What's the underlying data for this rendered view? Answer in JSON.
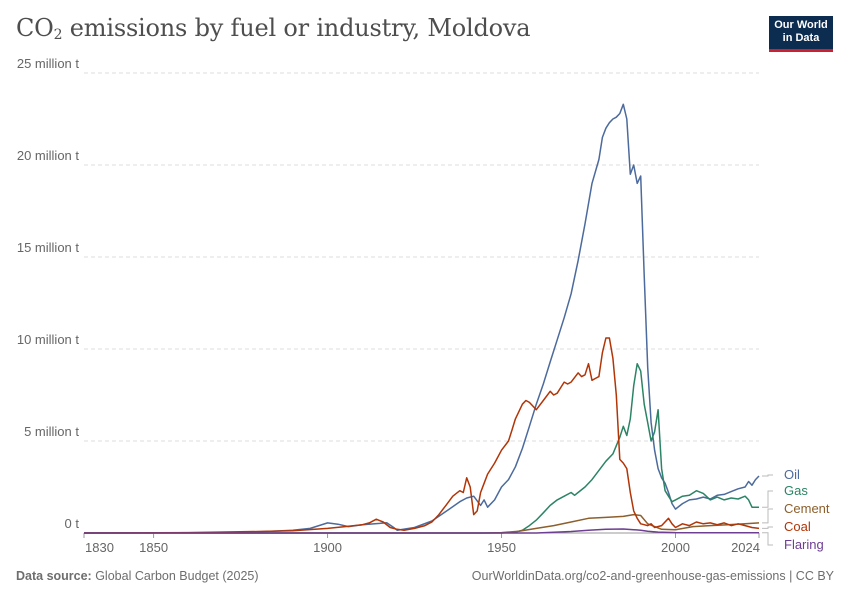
{
  "header": {
    "title_main": "CO",
    "title_sub": "2",
    "title_rest": " emissions by fuel or industry, Moldova",
    "logo_line1": "Our World",
    "logo_line2": "in Data"
  },
  "footer": {
    "source_label": "Data source:",
    "source_text": " Global Carbon Budget (2025)",
    "right_text": "OurWorldinData.org/co2-and-greenhouse-gas-emissions | CC BY"
  },
  "chart_data": {
    "type": "line",
    "title": "CO₂ emissions by fuel or industry, Moldova",
    "xlabel": "",
    "ylabel": "",
    "xlim": [
      1830,
      2024
    ],
    "ylim": [
      0,
      25000000
    ],
    "x_ticks": [
      1830,
      1850,
      1900,
      1950,
      2000,
      2024
    ],
    "y_ticks": [
      {
        "value": 0,
        "label": "0 t"
      },
      {
        "value": 5000000,
        "label": "5 million t"
      },
      {
        "value": 10000000,
        "label": "10 million t"
      },
      {
        "value": 15000000,
        "label": "15 million t"
      },
      {
        "value": 20000000,
        "label": "20 million t"
      },
      {
        "value": 25000000,
        "label": "25 million t"
      }
    ],
    "grid": true,
    "legend_position": "right",
    "series": [
      {
        "name": "Oil",
        "color": "#4c6a9c",
        "points": [
          [
            1830,
            0
          ],
          [
            1870,
            20000
          ],
          [
            1880,
            60000
          ],
          [
            1890,
            150000
          ],
          [
            1895,
            250000
          ],
          [
            1900,
            550000
          ],
          [
            1903,
            480000
          ],
          [
            1906,
            350000
          ],
          [
            1910,
            450000
          ],
          [
            1915,
            520000
          ],
          [
            1917,
            560000
          ],
          [
            1919,
            300000
          ],
          [
            1920,
            150000
          ],
          [
            1925,
            300000
          ],
          [
            1930,
            650000
          ],
          [
            1935,
            1300000
          ],
          [
            1938,
            1700000
          ],
          [
            1940,
            1900000
          ],
          [
            1942,
            2000000
          ],
          [
            1944,
            1500000
          ],
          [
            1945,
            1800000
          ],
          [
            1946,
            1400000
          ],
          [
            1948,
            1800000
          ],
          [
            1950,
            2500000
          ],
          [
            1952,
            2900000
          ],
          [
            1954,
            3600000
          ],
          [
            1956,
            4600000
          ],
          [
            1958,
            5800000
          ],
          [
            1960,
            7000000
          ],
          [
            1962,
            8100000
          ],
          [
            1964,
            9300000
          ],
          [
            1966,
            10500000
          ],
          [
            1968,
            11700000
          ],
          [
            1970,
            13000000
          ],
          [
            1972,
            14800000
          ],
          [
            1974,
            16800000
          ],
          [
            1976,
            19000000
          ],
          [
            1978,
            20300000
          ],
          [
            1979,
            21500000
          ],
          [
            1980,
            22000000
          ],
          [
            1981,
            22300000
          ],
          [
            1982,
            22500000
          ],
          [
            1983,
            22600000
          ],
          [
            1984,
            22800000
          ],
          [
            1985,
            23300000
          ],
          [
            1986,
            22500000
          ],
          [
            1987,
            19500000
          ],
          [
            1988,
            20000000
          ],
          [
            1989,
            19000000
          ],
          [
            1990,
            19400000
          ],
          [
            1991,
            14000000
          ],
          [
            1992,
            9000000
          ],
          [
            1993,
            6000000
          ],
          [
            1994,
            4500000
          ],
          [
            1995,
            3500000
          ],
          [
            1996,
            3000000
          ],
          [
            1997,
            2700000
          ],
          [
            1998,
            2200000
          ],
          [
            1999,
            1600000
          ],
          [
            2000,
            1300000
          ],
          [
            2002,
            1600000
          ],
          [
            2004,
            1800000
          ],
          [
            2006,
            1850000
          ],
          [
            2008,
            1950000
          ],
          [
            2010,
            1850000
          ],
          [
            2012,
            2050000
          ],
          [
            2014,
            2100000
          ],
          [
            2016,
            2250000
          ],
          [
            2018,
            2400000
          ],
          [
            2020,
            2500000
          ],
          [
            2021,
            2800000
          ],
          [
            2022,
            2600000
          ],
          [
            2023,
            2900000
          ],
          [
            2024,
            3100000
          ]
        ]
      },
      {
        "name": "Gas",
        "color": "#2c8465",
        "points": [
          [
            1830,
            0
          ],
          [
            1950,
            0
          ],
          [
            1954,
            50000
          ],
          [
            1956,
            150000
          ],
          [
            1958,
            400000
          ],
          [
            1960,
            700000
          ],
          [
            1962,
            1100000
          ],
          [
            1964,
            1500000
          ],
          [
            1966,
            1800000
          ],
          [
            1968,
            2000000
          ],
          [
            1970,
            2200000
          ],
          [
            1971,
            2050000
          ],
          [
            1972,
            2200000
          ],
          [
            1974,
            2500000
          ],
          [
            1976,
            2900000
          ],
          [
            1978,
            3400000
          ],
          [
            1980,
            3900000
          ],
          [
            1982,
            4300000
          ],
          [
            1984,
            5200000
          ],
          [
            1985,
            5800000
          ],
          [
            1986,
            5300000
          ],
          [
            1987,
            6200000
          ],
          [
            1988,
            8000000
          ],
          [
            1989,
            9200000
          ],
          [
            1990,
            8800000
          ],
          [
            1991,
            7000000
          ],
          [
            1992,
            6000000
          ],
          [
            1993,
            5000000
          ],
          [
            1994,
            5500000
          ],
          [
            1995,
            6700000
          ],
          [
            1996,
            3500000
          ],
          [
            1997,
            2300000
          ],
          [
            1998,
            2000000
          ],
          [
            1999,
            1700000
          ],
          [
            2000,
            1800000
          ],
          [
            2002,
            2000000
          ],
          [
            2004,
            2050000
          ],
          [
            2006,
            2300000
          ],
          [
            2008,
            2150000
          ],
          [
            2010,
            1800000
          ],
          [
            2012,
            1950000
          ],
          [
            2014,
            1800000
          ],
          [
            2016,
            1900000
          ],
          [
            2018,
            1850000
          ],
          [
            2020,
            2000000
          ],
          [
            2021,
            1800000
          ],
          [
            2022,
            1400000
          ],
          [
            2024,
            1400000
          ]
        ]
      },
      {
        "name": "Cement",
        "color": "#8c5f2c",
        "points": [
          [
            1830,
            0
          ],
          [
            1945,
            0
          ],
          [
            1950,
            20000
          ],
          [
            1955,
            100000
          ],
          [
            1960,
            250000
          ],
          [
            1965,
            400000
          ],
          [
            1970,
            600000
          ],
          [
            1975,
            800000
          ],
          [
            1980,
            850000
          ],
          [
            1985,
            900000
          ],
          [
            1988,
            1000000
          ],
          [
            1990,
            950000
          ],
          [
            1992,
            500000
          ],
          [
            1994,
            350000
          ],
          [
            1996,
            200000
          ],
          [
            2000,
            180000
          ],
          [
            2005,
            350000
          ],
          [
            2010,
            400000
          ],
          [
            2015,
            450000
          ],
          [
            2020,
            500000
          ],
          [
            2024,
            550000
          ]
        ]
      },
      {
        "name": "Coal",
        "color": "#b13507",
        "points": [
          [
            1830,
            0
          ],
          [
            1860,
            20000
          ],
          [
            1880,
            80000
          ],
          [
            1890,
            120000
          ],
          [
            1900,
            250000
          ],
          [
            1905,
            350000
          ],
          [
            1910,
            450000
          ],
          [
            1912,
            550000
          ],
          [
            1914,
            750000
          ],
          [
            1916,
            600000
          ],
          [
            1918,
            300000
          ],
          [
            1920,
            200000
          ],
          [
            1922,
            150000
          ],
          [
            1925,
            250000
          ],
          [
            1928,
            400000
          ],
          [
            1930,
            600000
          ],
          [
            1932,
            1000000
          ],
          [
            1934,
            1500000
          ],
          [
            1936,
            2000000
          ],
          [
            1938,
            2300000
          ],
          [
            1939,
            2200000
          ],
          [
            1940,
            3000000
          ],
          [
            1941,
            2500000
          ],
          [
            1942,
            1000000
          ],
          [
            1943,
            1200000
          ],
          [
            1944,
            2200000
          ],
          [
            1945,
            2700000
          ],
          [
            1946,
            3200000
          ],
          [
            1948,
            3800000
          ],
          [
            1950,
            4500000
          ],
          [
            1952,
            5000000
          ],
          [
            1953,
            5600000
          ],
          [
            1954,
            6200000
          ],
          [
            1955,
            6600000
          ],
          [
            1956,
            7000000
          ],
          [
            1957,
            7200000
          ],
          [
            1958,
            7100000
          ],
          [
            1959,
            6900000
          ],
          [
            1960,
            6700000
          ],
          [
            1962,
            7200000
          ],
          [
            1964,
            7700000
          ],
          [
            1965,
            7500000
          ],
          [
            1966,
            7600000
          ],
          [
            1967,
            7900000
          ],
          [
            1968,
            8200000
          ],
          [
            1969,
            8100000
          ],
          [
            1970,
            8200000
          ],
          [
            1972,
            8700000
          ],
          [
            1973,
            8500000
          ],
          [
            1974,
            8600000
          ],
          [
            1975,
            9200000
          ],
          [
            1976,
            8300000
          ],
          [
            1977,
            8400000
          ],
          [
            1978,
            8500000
          ],
          [
            1979,
            9800000
          ],
          [
            1980,
            10600000
          ],
          [
            1981,
            10600000
          ],
          [
            1982,
            9500000
          ],
          [
            1983,
            7500000
          ],
          [
            1984,
            4000000
          ],
          [
            1985,
            3800000
          ],
          [
            1986,
            3500000
          ],
          [
            1987,
            2200000
          ],
          [
            1988,
            1200000
          ],
          [
            1989,
            800000
          ],
          [
            1990,
            500000
          ],
          [
            1991,
            450000
          ],
          [
            1992,
            400000
          ],
          [
            1993,
            500000
          ],
          [
            1994,
            300000
          ],
          [
            1996,
            400000
          ],
          [
            1998,
            800000
          ],
          [
            1999,
            500000
          ],
          [
            2000,
            300000
          ],
          [
            2002,
            500000
          ],
          [
            2004,
            400000
          ],
          [
            2006,
            600000
          ],
          [
            2008,
            500000
          ],
          [
            2010,
            550000
          ],
          [
            2012,
            450000
          ],
          [
            2014,
            550000
          ],
          [
            2016,
            400000
          ],
          [
            2018,
            500000
          ],
          [
            2020,
            400000
          ],
          [
            2022,
            300000
          ],
          [
            2024,
            250000
          ]
        ]
      },
      {
        "name": "Flaring",
        "color": "#6d3e91",
        "points": [
          [
            1830,
            0
          ],
          [
            1960,
            0
          ],
          [
            1970,
            80000
          ],
          [
            1975,
            150000
          ],
          [
            1980,
            200000
          ],
          [
            1985,
            220000
          ],
          [
            1988,
            180000
          ],
          [
            1990,
            150000
          ],
          [
            1992,
            100000
          ],
          [
            1995,
            50000
          ],
          [
            2000,
            20000
          ],
          [
            2010,
            10000
          ],
          [
            2024,
            10000
          ]
        ]
      }
    ]
  }
}
